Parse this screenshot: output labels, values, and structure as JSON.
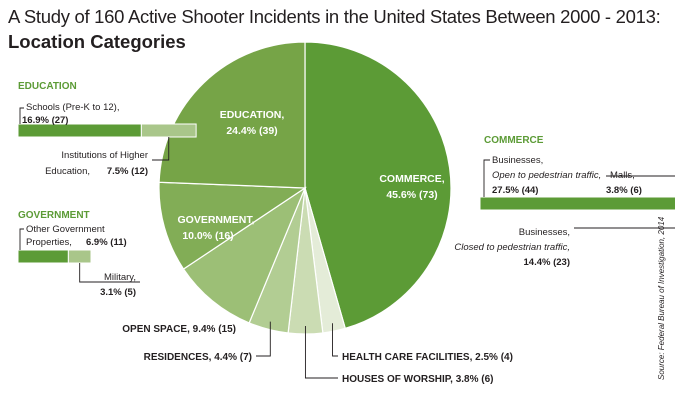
{
  "title": "A Study of 160 Active Shooter Incidents in the United States Between 2000 - 2013:",
  "subtitle": "Location Categories",
  "source": "Source: Federal Bureau of Investigation, 2014",
  "colors": {
    "commerce": "#5c9b36",
    "education": "#76a447",
    "government": "#82ad56",
    "open_space": "#9cbf76",
    "residences": "#b2cd93",
    "houses_of_worship": "#cbdcb3",
    "health_care": "#e4ecd8",
    "section_header": "#5c9b36",
    "bar_dark": "#5c9b36",
    "bar_light": "#a9c68a"
  },
  "chart_data": [
    {
      "type": "pie",
      "slices": [
        {
          "name": "COMMERCE",
          "value_label": "45.6% (73)",
          "percent": 45.6,
          "count": 73
        },
        {
          "name": "HEALTH CARE FACILITIES",
          "value_label": "2.5% (4)",
          "percent": 2.5,
          "count": 4
        },
        {
          "name": "HOUSES OF WORSHIP",
          "value_label": "3.8% (6)",
          "percent": 3.8,
          "count": 6
        },
        {
          "name": "RESIDENCES",
          "value_label": "4.4% (7)",
          "percent": 4.4,
          "count": 7
        },
        {
          "name": "OPEN SPACE",
          "value_label": "9.4% (15)",
          "percent": 9.4,
          "count": 15
        },
        {
          "name": "GOVERNMENT",
          "value_label": "10.0% (16)",
          "percent": 10.0,
          "count": 16
        },
        {
          "name": "EDUCATION",
          "value_label": "24.4% (39)",
          "percent": 24.4,
          "count": 39
        }
      ]
    },
    {
      "type": "bar",
      "group": "EDUCATION",
      "segments": [
        {
          "label": "Schools (Pre-K to 12),",
          "value_label": "16.9% (27)",
          "percent": 16.9,
          "count": 27
        },
        {
          "label": "Institutions of Higher Education,",
          "value_label": "7.5% (12)",
          "percent": 7.5,
          "count": 12
        }
      ]
    },
    {
      "type": "bar",
      "group": "GOVERNMENT",
      "segments": [
        {
          "label": "Other Government Properties,",
          "value_label": "6.9% (11)",
          "percent": 6.9,
          "count": 11
        },
        {
          "label": "Military,",
          "value_label": "3.1% (5)",
          "percent": 3.1,
          "count": 5
        }
      ]
    },
    {
      "type": "bar",
      "group": "COMMERCE",
      "segments": [
        {
          "label": "Businesses,",
          "sublabel": "Open to pedestrian traffic,",
          "value_label": "27.5% (44)",
          "percent": 27.5,
          "count": 44
        },
        {
          "label": "Businesses,",
          "sublabel": "Closed to pedestrian traffic,",
          "value_label": "14.4% (23)",
          "percent": 14.4,
          "count": 23
        },
        {
          "label": "Malls,",
          "value_label": "3.8% (6)",
          "percent": 3.8,
          "count": 6
        }
      ]
    }
  ]
}
